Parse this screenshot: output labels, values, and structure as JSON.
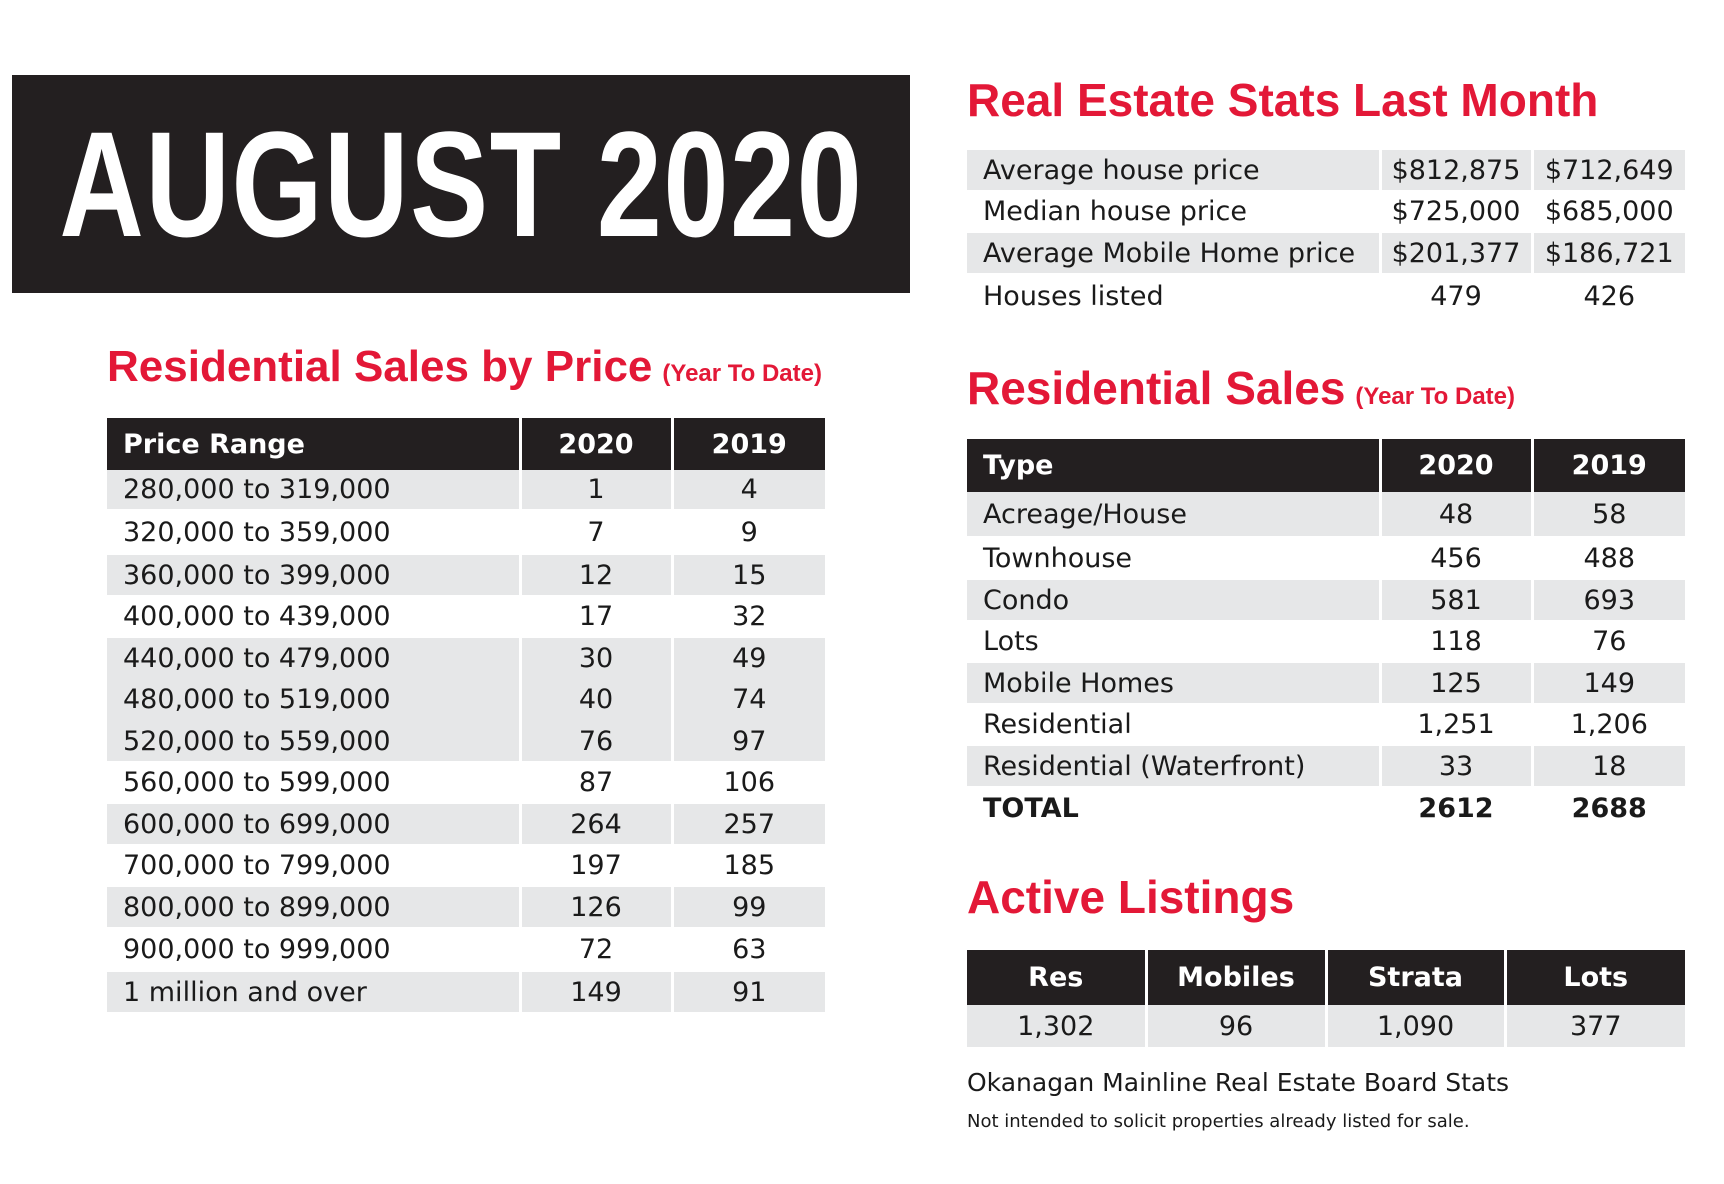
{
  "banner": {
    "title": "AUGUST 2020"
  },
  "price_section": {
    "title": "Residential Sales by Price",
    "subtitle": "(Year To Date)",
    "headers": [
      "Price Range",
      "2020",
      "2019"
    ],
    "rows": [
      {
        "range": "280,000 to 319,000",
        "y2020": "1",
        "y2019": "4"
      },
      {
        "range": "320,000 to 359,000",
        "y2020": "7",
        "y2019": "9"
      },
      {
        "range": "360,000 to 399,000",
        "y2020": "12",
        "y2019": "15"
      },
      {
        "range": "400,000 to 439,000",
        "y2020": "17",
        "y2019": "32"
      },
      {
        "range": "440,000 to 479,000",
        "y2020": "30",
        "y2019": "49"
      },
      {
        "range": "480,000 to 519,000",
        "y2020": "40",
        "y2019": "74"
      },
      {
        "range": "520,000 to 559,000",
        "y2020": "76",
        "y2019": "97"
      },
      {
        "range": "560,000 to 599,000",
        "y2020": "87",
        "y2019": "106"
      },
      {
        "range": "600,000 to 699,000",
        "y2020": "264",
        "y2019": "257"
      },
      {
        "range": "700,000 to 799,000",
        "y2020": "197",
        "y2019": "185"
      },
      {
        "range": "800,000 to 899,000",
        "y2020": "126",
        "y2019": "99"
      },
      {
        "range": "900,000 to 999,000",
        "y2020": "72",
        "y2019": "63"
      },
      {
        "range": "1 million and over",
        "y2020": "149",
        "y2019": "91"
      }
    ]
  },
  "stats_section": {
    "title": "Real Estate Stats Last Month",
    "rows": [
      {
        "label": "Average house price",
        "a": "$812,875",
        "b": "$712,649"
      },
      {
        "label": "Median house price",
        "a": "$725,000",
        "b": "$685,000"
      },
      {
        "label": "Average Mobile Home price",
        "a": "$201,377",
        "b": "$186,721"
      },
      {
        "label": "Houses listed",
        "a": "479",
        "b": "426"
      }
    ]
  },
  "sales_section": {
    "title": "Residential Sales",
    "subtitle": "(Year To Date)",
    "headers": [
      "Type",
      "2020",
      "2019"
    ],
    "rows": [
      {
        "type": "Acreage/House",
        "y2020": "48",
        "y2019": "58"
      },
      {
        "type": "Townhouse",
        "y2020": "456",
        "y2019": "488"
      },
      {
        "type": "Condo",
        "y2020": "581",
        "y2019": "693"
      },
      {
        "type": "Lots",
        "y2020": "118",
        "y2019": "76"
      },
      {
        "type": "Mobile Homes",
        "y2020": "125",
        "y2019": "149"
      },
      {
        "type": "Residential",
        "y2020": "1,251",
        "y2019": "1,206"
      },
      {
        "type": "Residential (Waterfront)",
        "y2020": "33",
        "y2019": "18"
      },
      {
        "type": "TOTAL",
        "y2020": "2612",
        "y2019": "2688"
      }
    ]
  },
  "active_section": {
    "title": "Active Listings",
    "headers": [
      "Res",
      "Mobiles",
      "Strata",
      "Lots"
    ],
    "values": [
      "1,302",
      "96",
      "1,090",
      "377"
    ]
  },
  "footer": {
    "source": "Okanagan Mainline Real Estate Board Stats",
    "disclaimer": "Not intended to solicit properties already listed for sale."
  },
  "colors": {
    "accent": "#e31837",
    "dark": "#231f20",
    "shade": "#e6e7e8"
  }
}
